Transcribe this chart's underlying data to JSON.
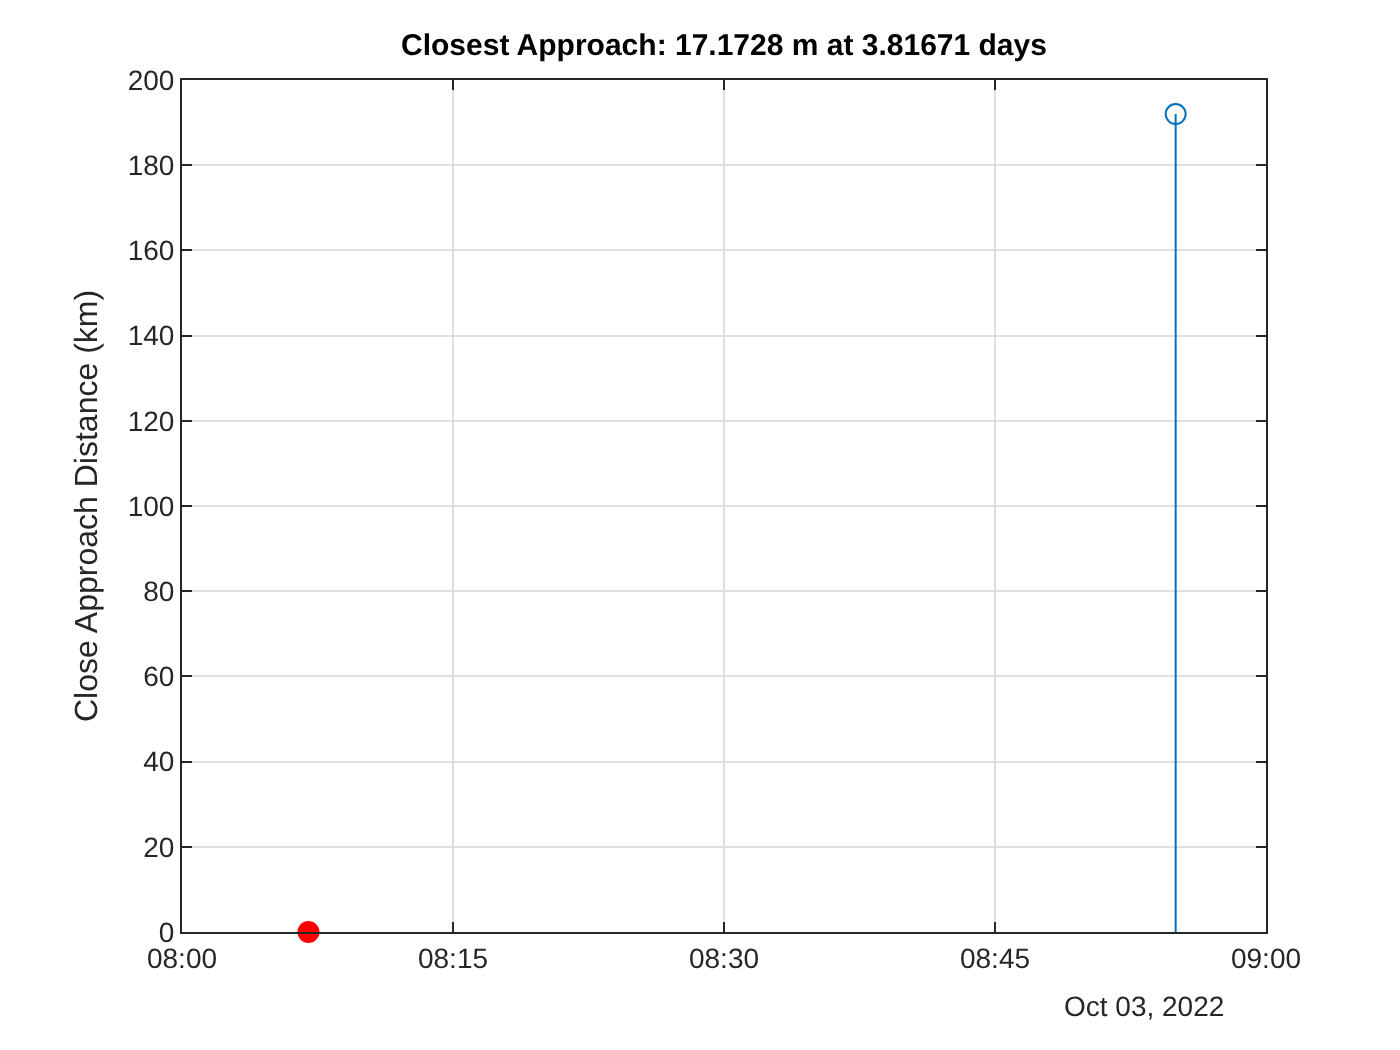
{
  "chart_data": {
    "type": "lollipop",
    "title": "Closest Approach: 17.1728 m at 3.81671 days",
    "ylabel": "Close Approach Distance (km)",
    "annotations": [
      "Oct 03, 2022"
    ],
    "series": [
      {
        "color": "#0072bd",
        "x": [
          "2022-10-03T08:55"
        ],
        "values": [
          192
        ]
      },
      {
        "type": "scatter",
        "color": "#ff0000",
        "x": [
          "2022-10-03T08:07"
        ],
        "values": [
          0
        ]
      }
    ],
    "xlim": [
      "2022-10-03T08:00",
      "2022-10-03T09:00"
    ],
    "xticks": [
      {
        "value": "2022-10-03T08:00",
        "label": "08:00"
      },
      {
        "value": "2022-10-03T08:15",
        "label": "08:15"
      },
      {
        "value": "2022-10-03T08:30",
        "label": "08:30"
      },
      {
        "value": "2022-10-03T08:45",
        "label": "08:45"
      },
      {
        "value": "2022-10-03T09:00",
        "label": "09:00"
      }
    ],
    "ylim": [
      0,
      200
    ],
    "yticks": [
      0,
      20,
      40,
      60,
      80,
      100,
      120,
      140,
      160,
      180,
      200
    ],
    "grid": true,
    "marker": "circle"
  }
}
